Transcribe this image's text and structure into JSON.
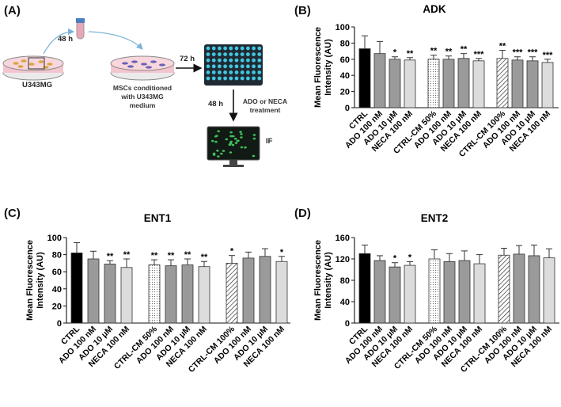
{
  "panels": {
    "a": "(A)",
    "b": "(B)",
    "c": "(C)",
    "d": "(D)"
  },
  "schematic": {
    "time1": "48 h",
    "time2": "72 h",
    "time3": "48 h",
    "cell_label": "U343MG",
    "msc_label_1": "MSCs conditioned",
    "msc_label_2": "with U343MG",
    "msc_label_3": "medium",
    "treatment_1": "ADO or NECA",
    "treatment_2": "treatment",
    "readout": "IF",
    "colors": {
      "dish": "#f3c6cf",
      "plate": "#1f2a33",
      "well": "#43c6e0",
      "screen": "#111a14",
      "cell": "#3fbf58"
    }
  },
  "chart_data": [
    {
      "id": "adk",
      "type": "bar",
      "title": "ADK",
      "ylabel_line1": "Mean Fluorescence",
      "ylabel_line2": "Intensity (AU)",
      "ylim": [
        0,
        100
      ],
      "yticks": [
        0,
        20,
        40,
        60,
        80,
        100
      ],
      "categories": [
        "CTRL",
        "ADO 100 nM",
        "ADO 10 μM",
        "NECA 100 nM",
        "CTRL-CM 50%",
        "ADO 100 nM",
        "ADO 10 μM",
        "NECA 100 nM",
        "CTRL-CM 100%",
        "ADO 100 nM",
        "ADO 10 μM",
        "NECA 100 nM"
      ],
      "values": [
        73,
        67,
        60,
        59,
        60,
        60,
        61,
        58,
        61,
        59,
        58,
        56
      ],
      "errors": [
        16,
        15,
        3,
        3,
        5,
        4,
        6,
        3,
        10,
        4,
        5,
        4
      ],
      "significance": [
        "",
        "",
        "*",
        "**",
        "**",
        "**",
        "**",
        "***",
        "**",
        "***",
        "***",
        "***"
      ],
      "fills": [
        "black",
        "midgray",
        "midgray",
        "lightgray",
        "dotted",
        "midgray",
        "midgray",
        "lightgray",
        "hatched",
        "midgray",
        "midgray",
        "lightgray"
      ]
    },
    {
      "id": "ent1",
      "type": "bar",
      "title": "ENT1",
      "ylabel_line1": "Mean Fluorescence",
      "ylabel_line2": "Intensity (AU)",
      "ylim": [
        0,
        100
      ],
      "yticks": [
        0,
        20,
        40,
        60,
        80,
        100
      ],
      "categories": [
        "CTRL",
        "ADO 100 nM",
        "ADO 10 μM",
        "NECA 100 nM",
        "CTRL-CM 50%",
        "ADO 100 nM",
        "ADO 10 μM",
        "NECA 100 nM",
        "CTRL-CM 100%",
        "ADO 100 nM",
        "ADO 10 μM",
        "NECA 100 nM"
      ],
      "values": [
        82,
        75,
        69,
        65,
        68,
        67,
        68,
        66,
        70,
        76,
        78,
        72
      ],
      "errors": [
        12,
        9,
        4,
        10,
        6,
        7,
        7,
        6,
        9,
        7,
        9,
        6
      ],
      "significance": [
        "",
        "",
        "**",
        "**",
        "**",
        "**",
        "**",
        "**",
        "*",
        "",
        "",
        "*"
      ],
      "fills": [
        "black",
        "midgray",
        "midgray",
        "lightgray",
        "dotted",
        "midgray",
        "midgray",
        "lightgray",
        "hatched",
        "midgray",
        "midgray",
        "lightgray"
      ]
    },
    {
      "id": "ent2",
      "type": "bar",
      "title": "ENT2",
      "ylabel_line1": "Mean Fluorescence",
      "ylabel_line2": "Intensity (AU)",
      "ylim": [
        0,
        160
      ],
      "yticks": [
        0,
        40,
        80,
        120,
        160
      ],
      "categories": [
        "CTRL",
        "ADO 100 nM",
        "ADO 10 μM",
        "NECA 100 nM",
        "CTRL-CM 50%",
        "ADO 100 nM",
        "ADO 10 μM",
        "NECA 100 nM",
        "CTRL-CM 100%",
        "ADO 100 nM",
        "ADO 10 μM",
        "NECA 100 nM"
      ],
      "values": [
        130,
        117,
        105,
        108,
        120,
        115,
        117,
        111,
        127,
        129,
        126,
        122
      ],
      "errors": [
        16,
        9,
        8,
        7,
        17,
        15,
        18,
        17,
        13,
        16,
        20,
        17
      ],
      "significance": [
        "",
        "",
        "*",
        "*",
        "",
        "",
        "",
        "",
        "",
        "",
        "",
        ""
      ],
      "fills": [
        "black",
        "midgray",
        "midgray",
        "lightgray",
        "dotted",
        "midgray",
        "midgray",
        "lightgray",
        "hatched",
        "midgray",
        "midgray",
        "lightgray"
      ]
    }
  ],
  "fill_colors": {
    "black": "#000000",
    "midgray": "#9a9a9a",
    "lightgray": "#dcdcdc"
  }
}
